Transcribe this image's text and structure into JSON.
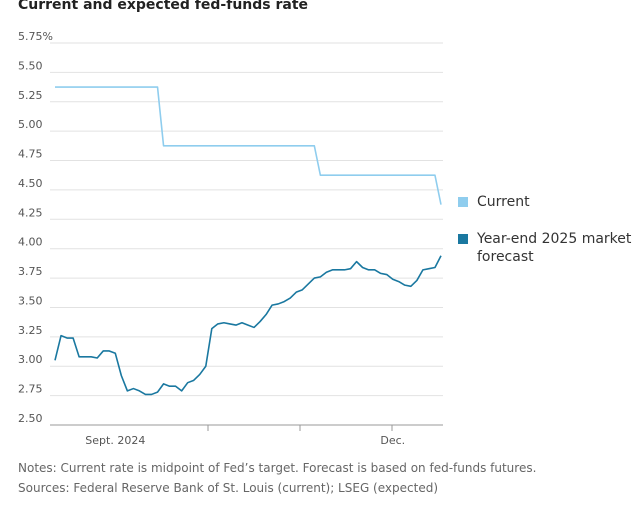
{
  "chart_data": {
    "type": "line",
    "title": "Current and expected fed-funds rate",
    "categories": [
      null,
      null,
      null,
      null,
      null,
      null,
      null,
      null,
      null,
      null,
      "Sept. 2024",
      null,
      null,
      null,
      null,
      null,
      null,
      null,
      null,
      null,
      null,
      null,
      null,
      null,
      null,
      null,
      null,
      null,
      null,
      null,
      null,
      null,
      null,
      null,
      null,
      null,
      null,
      null,
      null,
      null,
      null,
      null,
      null,
      null,
      null,
      null,
      null,
      null,
      null,
      null,
      null,
      null,
      null,
      null,
      null,
      null,
      "Dec.",
      null,
      null,
      null,
      null,
      null,
      null,
      null,
      null
    ],
    "series": [
      {
        "name": "Current",
        "color": "#8fcdee",
        "values": [
          5.375,
          5.375,
          5.375,
          5.375,
          5.375,
          5.375,
          5.375,
          5.375,
          5.375,
          5.375,
          5.375,
          5.375,
          5.375,
          5.375,
          5.375,
          5.375,
          5.375,
          5.375,
          4.875,
          4.875,
          4.875,
          4.875,
          4.875,
          4.875,
          4.875,
          4.875,
          4.875,
          4.875,
          4.875,
          4.875,
          4.875,
          4.875,
          4.875,
          4.875,
          4.875,
          4.875,
          4.875,
          4.875,
          4.875,
          4.875,
          4.875,
          4.875,
          4.875,
          4.875,
          4.625,
          4.625,
          4.625,
          4.625,
          4.625,
          4.625,
          4.625,
          4.625,
          4.625,
          4.625,
          4.625,
          4.625,
          4.625,
          4.625,
          4.625,
          4.625,
          4.625,
          4.625,
          4.625,
          4.625,
          4.375
        ]
      },
      {
        "name": "Year-end 2025 market forecast",
        "color": "#1a78a0",
        "values": [
          3.05,
          3.26,
          3.24,
          3.24,
          3.08,
          3.08,
          3.08,
          3.07,
          3.13,
          3.13,
          3.11,
          2.92,
          2.79,
          2.81,
          2.79,
          2.76,
          2.76,
          2.78,
          2.85,
          2.83,
          2.83,
          2.79,
          2.86,
          2.88,
          2.93,
          3.0,
          3.32,
          3.36,
          3.37,
          3.36,
          3.35,
          3.37,
          3.35,
          3.33,
          3.38,
          3.44,
          3.52,
          3.53,
          3.55,
          3.58,
          3.63,
          3.65,
          3.7,
          3.75,
          3.76,
          3.8,
          3.82,
          3.82,
          3.82,
          3.83,
          3.89,
          3.84,
          3.82,
          3.82,
          3.79,
          3.78,
          3.74,
          3.72,
          3.69,
          3.68,
          3.73,
          3.82,
          3.83,
          3.84,
          3.94
        ]
      }
    ],
    "ylim": [
      2.5,
      5.75
    ],
    "yticks": [
      {
        "value": 5.75,
        "label": "5.75%"
      },
      {
        "value": 5.5,
        "label": "5.50"
      },
      5.25,
      {
        "value": 5,
        "label": "5.00"
      },
      4.75,
      {
        "value": 4.5,
        "label": "4.50"
      },
      4.25,
      {
        "value": 4,
        "label": "4.00"
      },
      3.75,
      {
        "value": 3.5,
        "label": "3.50"
      },
      3.25,
      {
        "value": 3,
        "label": "3.00"
      },
      2.75,
      {
        "value": 2.5,
        "label": "2.50"
      }
    ],
    "grid": true,
    "notes": [
      "Notes: Current rate is midpoint of Fed’s target. Forecast is based on fed-funds futures.",
      "Sources: Federal Reserve Bank of St. Louis (current); LSEG (expected)"
    ]
  }
}
